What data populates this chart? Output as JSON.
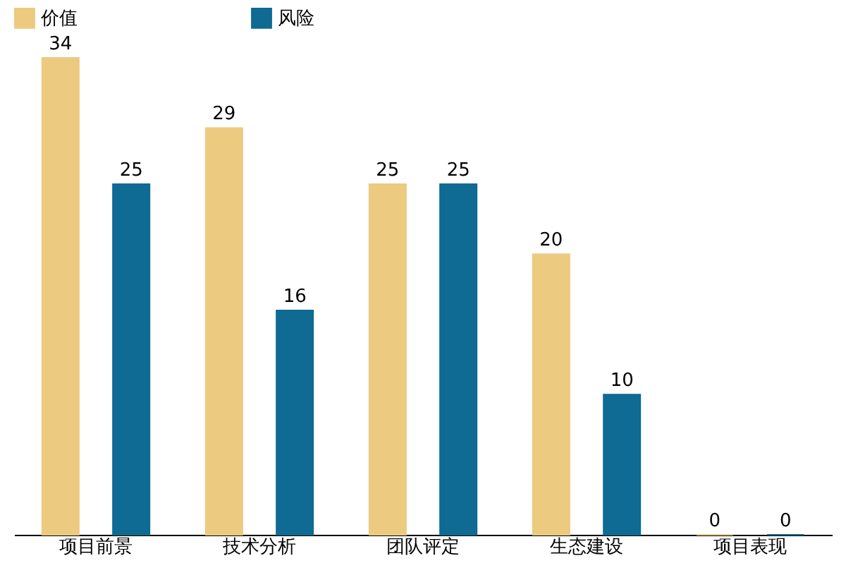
{
  "chart_data": {
    "type": "bar",
    "categories": [
      "项目前景",
      "技术分析",
      "团队评定",
      "生态建设",
      "项目表现"
    ],
    "series": [
      {
        "name": "价值",
        "color": "#ecca7f",
        "values": [
          34,
          29,
          25,
          20,
          0
        ]
      },
      {
        "name": "风险",
        "color": "#0f6a94",
        "values": [
          25,
          16,
          25,
          10,
          0
        ]
      }
    ],
    "data_labels": true,
    "legend": "top",
    "grid": false
  }
}
